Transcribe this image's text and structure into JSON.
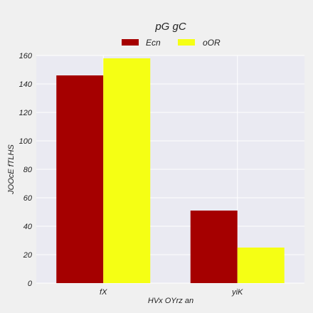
{
  "chart_data": {
    "type": "bar",
    "title": "pG gC",
    "xlabel": "HVx OYrz an",
    "ylabel": "JOOcE fTLHS",
    "categories": [
      "fX",
      "yiK"
    ],
    "series": [
      {
        "name": "Ecn",
        "values": [
          146,
          51
        ],
        "color": "#a50000"
      },
      {
        "name": "oOR",
        "values": [
          158,
          25
        ],
        "color": "#f5ff14"
      }
    ],
    "ylim": [
      0,
      160
    ],
    "yticks": [
      0,
      20,
      40,
      60,
      80,
      100,
      120,
      140,
      160
    ],
    "grid": true,
    "legend_position": "top-center",
    "plot_background": "#eaeaf2",
    "page_background": "#f0f0f0"
  }
}
